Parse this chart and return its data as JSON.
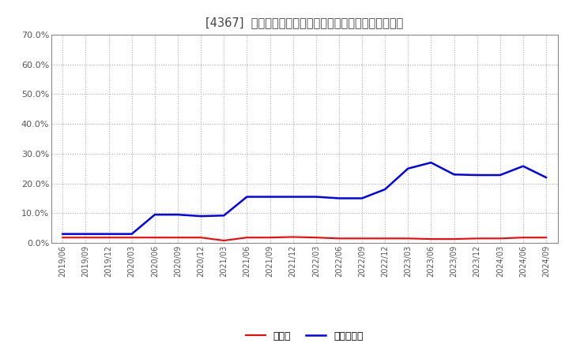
{
  "title": "[4367]  現預金、有利子負債の総資産に対する比率の推移",
  "dates": [
    "2019/06",
    "2019/09",
    "2019/12",
    "2020/03",
    "2020/06",
    "2020/09",
    "2020/12",
    "2021/03",
    "2021/06",
    "2021/09",
    "2021/12",
    "2022/03",
    "2022/06",
    "2022/09",
    "2022/12",
    "2023/03",
    "2023/06",
    "2023/09",
    "2023/12",
    "2024/03",
    "2024/06",
    "2024/09"
  ],
  "genkin": [
    0.018,
    0.018,
    0.018,
    0.018,
    0.018,
    0.018,
    0.018,
    0.008,
    0.018,
    0.018,
    0.02,
    0.018,
    0.015,
    0.015,
    0.015,
    0.015,
    0.013,
    0.013,
    0.015,
    0.015,
    0.018,
    0.018
  ],
  "yuri": [
    0.03,
    0.03,
    0.03,
    0.03,
    0.095,
    0.095,
    0.09,
    0.092,
    0.155,
    0.155,
    0.155,
    0.155,
    0.15,
    0.15,
    0.18,
    0.25,
    0.27,
    0.23,
    0.228,
    0.228,
    0.258,
    0.22
  ],
  "genkin_color": "#ff0000",
  "yuri_color": "#0000ff",
  "bg_color": "#ffffff",
  "plot_bg_color": "#ffffff",
  "grid_color": "#aaaaaa",
  "title_color": "#444444",
  "ylim": [
    0.0,
    0.7
  ],
  "yticks": [
    0.0,
    0.1,
    0.2,
    0.3,
    0.4,
    0.5,
    0.6,
    0.7
  ],
  "legend_genkin": "現預金",
  "legend_yuri": "有利子負債"
}
